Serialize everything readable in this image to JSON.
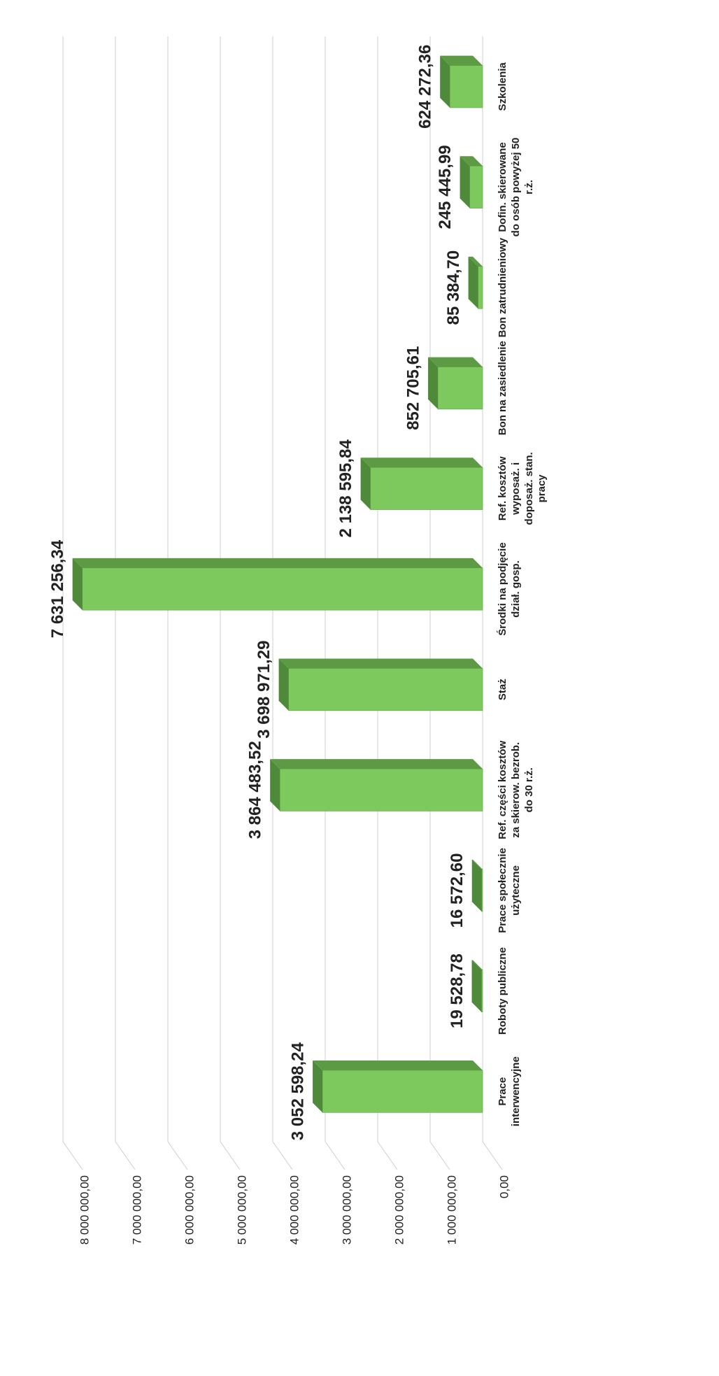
{
  "chart_data": {
    "type": "bar",
    "categories": [
      "Prace interwencyjne",
      "Roboty publiczne",
      "Prace społecznie użyteczne",
      "Ref. części kosztów za skierow. bezrob. do 30 r.ż.",
      "Staż",
      "Środki na podjęcie dział. gosp.",
      "Ref. kosztów wyposaż. i doposaż. stan. pracy",
      "Bon na zasiedlenie",
      "Bon zatrudnieniowy",
      "Dofin. skierowane do osób powyżej 50 r.ż.",
      "Szkolenia"
    ],
    "values": [
      3052598.24,
      19528.78,
      16572.6,
      3864483.52,
      3698971.29,
      7631256.34,
      2138595.84,
      852705.61,
      85384.7,
      245445.99,
      624272.36
    ],
    "value_labels": [
      "3 052 598,24",
      "19 528,78",
      "16 572,60",
      "3 864 483,52",
      "3 698 971,29",
      "7 631 256,34",
      "2 138 595,84",
      "852 705,61",
      "85 384,70",
      "245 445,99",
      "624 272,36"
    ],
    "color": "#7dc95e",
    "ylim": [
      0,
      8000000
    ],
    "yticks": [
      {
        "value": 0,
        "label": "0,00"
      },
      {
        "value": 1000000,
        "label": "1 000 000,00"
      },
      {
        "value": 2000000,
        "label": "2 000 000,00"
      },
      {
        "value": 3000000,
        "label": "3 000 000,00"
      },
      {
        "value": 4000000,
        "label": "4 000 000,00"
      },
      {
        "value": 5000000,
        "label": "5 000 000,00"
      },
      {
        "value": 6000000,
        "label": "6 000 000,00"
      },
      {
        "value": 7000000,
        "label": "7 000 000,00"
      },
      {
        "value": 8000000,
        "label": "8 000 000,00"
      }
    ],
    "grid": true
  }
}
